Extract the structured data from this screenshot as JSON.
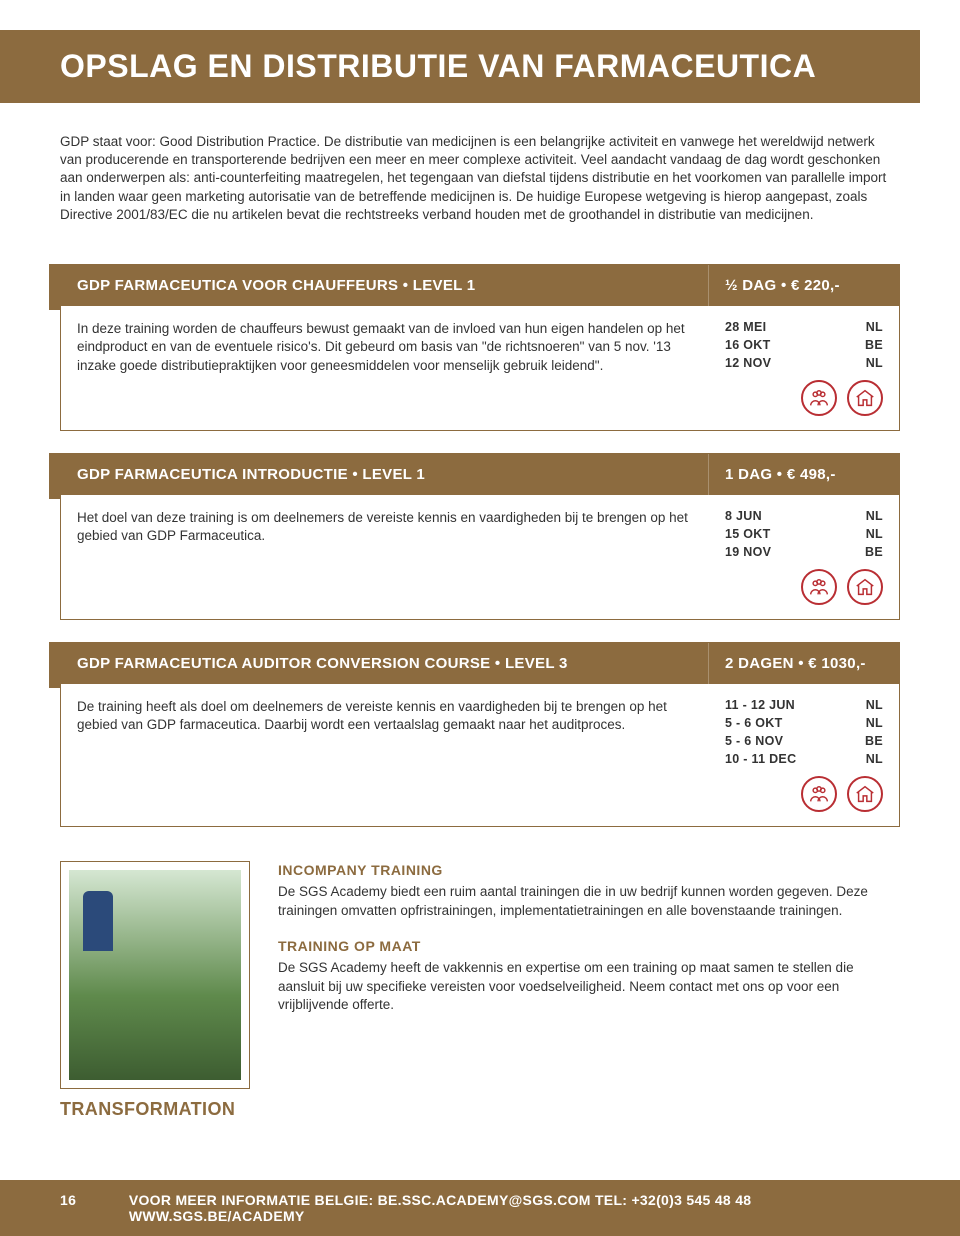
{
  "page": {
    "title": "OPSLAG EN DISTRIBUTIE VAN FARMACEUTICA",
    "intro": "GDP staat voor: Good Distribution Practice. De distributie van medicijnen is een belangrijke activiteit en vanwege het wereldwijd netwerk van producerende en transporterende bedrijven een meer en meer complexe activiteit. Veel aandacht vandaag de dag wordt geschonken aan onderwerpen als: anti-counterfeiting maatregelen, het tegengaan van diefstal tijdens distributie en het voorkomen van parallelle import in landen waar geen marketing autorisatie van de betreffende medicijnen is. De huidige Europese wetgeving is hierop aangepast, zoals Directive 2001/83/EC die nu artikelen bevat die rechtstreeks verband houden met de groothandel in distributie van medicijnen."
  },
  "courses": [
    {
      "title": "GDP FARMACEUTICA VOOR CHAUFFEURS • LEVEL 1",
      "price": "½ DAG  •  € 220,-",
      "desc": "In deze training worden de chauffeurs bewust gemaakt van de invloed van hun eigen handelen op het eindproduct en van de eventuele risico's. Dit gebeurd om basis van \"de richtsnoeren\" van 5 nov. '13 inzake goede distributiepraktijken voor geneesmiddelen voor menselijk gebruik leidend\".",
      "dates": [
        {
          "d": "28 MEI",
          "c": "NL"
        },
        {
          "d": "16 OKT",
          "c": "BE"
        },
        {
          "d": "12 NOV",
          "c": "NL"
        }
      ]
    },
    {
      "title": "GDP FARMACEUTICA INTRODUCTIE • LEVEL 1",
      "price": "1 DAG  •  € 498,-",
      "desc": "Het doel van deze training is om deelnemers de vereiste kennis en vaardigheden bij te brengen op het gebied van GDP Farmaceutica.",
      "dates": [
        {
          "d": "8 JUN",
          "c": "NL"
        },
        {
          "d": "15 OKT",
          "c": "NL"
        },
        {
          "d": "19 NOV",
          "c": "BE"
        }
      ]
    },
    {
      "title": "GDP FARMACEUTICA AUDITOR CONVERSION COURSE • LEVEL 3",
      "price": "2 DAGEN  •  € 1030,-",
      "desc": "De training heeft als doel om deelnemers de vereiste kennis en vaardigheden bij te brengen op het gebied van GDP farmaceutica. Daarbij wordt een vertaalslag gemaakt naar het auditproces.",
      "dates": [
        {
          "d": "11 - 12 JUN",
          "c": "NL"
        },
        {
          "d": "5 - 6 OKT",
          "c": "NL"
        },
        {
          "d": "5 - 6 NOV",
          "c": "BE"
        },
        {
          "d": "10 - 11 DEC",
          "c": "NL"
        }
      ]
    }
  ],
  "info": {
    "h1": "INCOMPANY TRAINING",
    "p1": "De SGS Academy biedt een ruim aantal trainingen die in uw bedrijf kunnen worden gegeven. Deze trainingen omvatten opfristrainingen, implementatietrainingen en alle bovenstaande trainingen.",
    "h2": "TRAINING OP MAAT",
    "p2": "De SGS Academy heeft de vakkennis en expertise om een training op maat samen te stellen die aansluit bij uw specifieke vereisten voor voedselveiligheid. Neem contact met ons op voor een vrijblijvende offerte.",
    "transformation": "TRANSFORMATION"
  },
  "footer": {
    "page_number": "16",
    "text": "VOOR MEER INFORMATIE BELGIE: BE.SSC.ACADEMY@SGS.COM TEL: +32(0)3 545 48 48 WWW.SGS.BE/ACADEMY"
  },
  "colors": {
    "accent": "#8c6b3f",
    "icon": "#b92e33",
    "text": "#333333",
    "bg": "#ffffff"
  }
}
